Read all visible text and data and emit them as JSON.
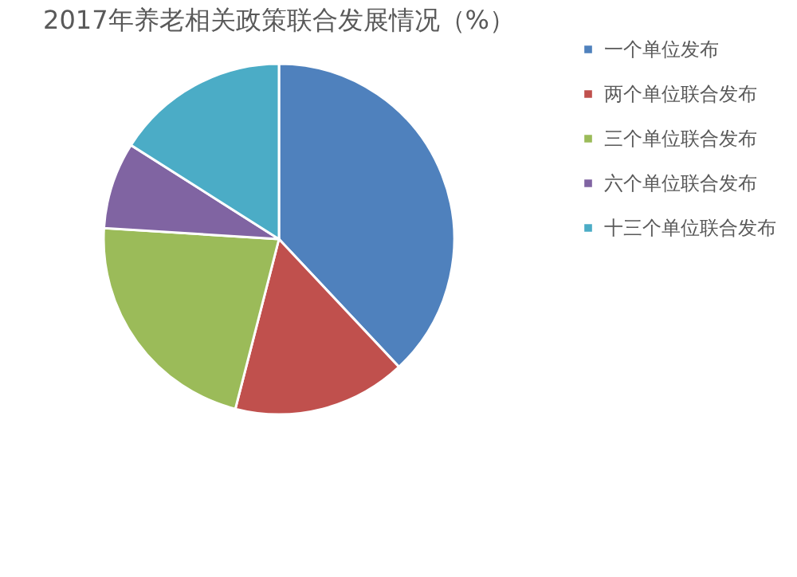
{
  "chart_data": {
    "type": "pie",
    "title": "2017年养老相关政策联合发展情况（%）",
    "categories": [
      "一个单位发布",
      "两个单位联合发布",
      "三个单位联合发布",
      "六个单位联合发布",
      "十三个单位联合发布"
    ],
    "values": [
      38,
      16,
      22,
      8,
      16
    ],
    "colors": [
      "#4f81bd",
      "#c0504d",
      "#9bbb59",
      "#8064a2",
      "#4bacc6"
    ],
    "legend": "right"
  }
}
